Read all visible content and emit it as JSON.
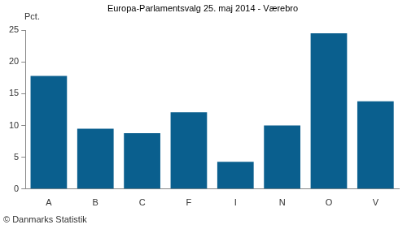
{
  "chart_data": {
    "type": "bar",
    "title": "Europa-Parlamentsvalg 25. maj 2014 - Værebro",
    "y_label": "Pct.",
    "annotation": "© Danmarks Statistik",
    "categories": [
      "A",
      "B",
      "C",
      "F",
      "I",
      "N",
      "O",
      "V"
    ],
    "values": [
      17.8,
      9.5,
      8.8,
      12.1,
      4.3,
      10.0,
      24.5,
      13.8
    ],
    "color": "#0a5f8e",
    "ylim": [
      0,
      25
    ],
    "yticks": [
      0,
      5,
      10,
      15,
      20,
      25
    ],
    "grid": false
  }
}
